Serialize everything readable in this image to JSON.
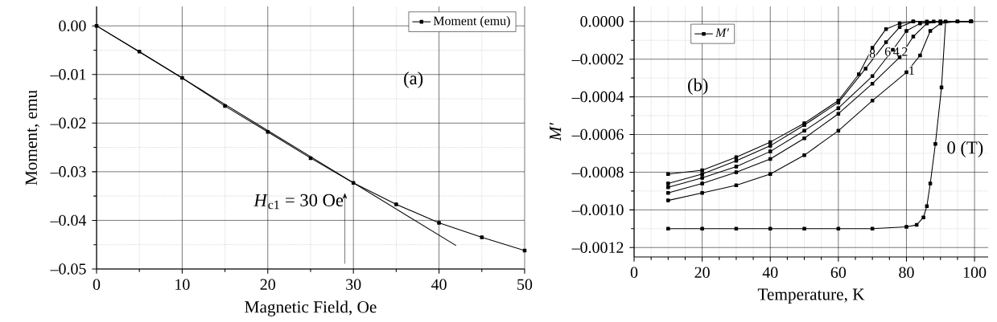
{
  "chart_data": [
    {
      "type": "line",
      "xlabel": "Magnetic Field, Oe",
      "ylabel": "Moment, emu",
      "x": [
        0,
        5,
        10,
        15,
        20,
        25,
        30,
        35,
        40,
        45,
        50
      ],
      "series": [
        {
          "name": "Moment (emu)",
          "color": "#000000",
          "values": [
            0,
            -0.0053,
            -0.0107,
            -0.0165,
            -0.0218,
            -0.0272,
            -0.0323,
            -0.0367,
            -0.0405,
            -0.0435,
            -0.0462
          ]
        },
        {
          "type": "line",
          "color": "#000000",
          "marker": "none",
          "x": [
            0,
            42
          ],
          "values": [
            0,
            -0.0452
          ]
        }
      ],
      "xlim": [
        0,
        50
      ],
      "ylim": [
        -0.05,
        0.004
      ],
      "xticks": [
        0,
        10,
        20,
        30,
        40,
        50
      ],
      "yticks": [
        {
          "value": 0,
          "label": "0.00"
        },
        {
          "value": -0.01,
          "label": "–0.01"
        },
        {
          "value": -0.02,
          "label": "–0.02"
        },
        {
          "value": -0.03,
          "label": "–0.03"
        },
        {
          "value": -0.04,
          "label": "–0.04"
        },
        {
          "value": -0.05,
          "label": "–0.05"
        }
      ],
      "grid": true,
      "legend": "top right",
      "marker": "square",
      "line_style": "solid",
      "annotations": [
        "(a)",
        "*H*$_{c1}$ = 30 Oe"
      ]
    },
    {
      "type": "line",
      "xlabel": "Temperature, K",
      "ylabel": "*M′*",
      "series": [
        {
          "name": "*M′*",
          "color": "#000000",
          "x": [
            10,
            20,
            30,
            40,
            50,
            60,
            66,
            70,
            74,
            78,
            82,
            90,
            99
          ],
          "values": [
            -0.00081,
            -0.00079,
            -0.00072,
            -0.00064,
            -0.00054,
            -0.00042,
            -0.00028,
            -0.00014,
            -4e-05,
            -1e-05,
            0,
            0,
            0
          ]
        },
        {
          "color": "#000000",
          "x": [
            10,
            20,
            30,
            40,
            50,
            60,
            68,
            74,
            78,
            82,
            86,
            99
          ],
          "values": [
            -0.00086,
            -0.00081,
            -0.00074,
            -0.00066,
            -0.00055,
            -0.00043,
            -0.00025,
            -0.00011,
            -3e-05,
            0,
            0,
            0
          ]
        },
        {
          "color": "#000000",
          "x": [
            10,
            20,
            30,
            40,
            50,
            60,
            70,
            76,
            80,
            84,
            88,
            99
          ],
          "values": [
            -0.00088,
            -0.00083,
            -0.00077,
            -0.00069,
            -0.00058,
            -0.00046,
            -0.00029,
            -0.00015,
            -5e-05,
            -1e-05,
            0,
            0
          ]
        },
        {
          "color": "#000000",
          "x": [
            10,
            20,
            30,
            40,
            50,
            60,
            70,
            78,
            82,
            86,
            90,
            99
          ],
          "values": [
            -0.00091,
            -0.00086,
            -0.0008,
            -0.00073,
            -0.00062,
            -0.00049,
            -0.00033,
            -0.00019,
            -8e-05,
            -1e-05,
            0,
            0
          ]
        },
        {
          "color": "#000000",
          "x": [
            10,
            20,
            30,
            40,
            50,
            60,
            70,
            80,
            84,
            87,
            90,
            95,
            99
          ],
          "values": [
            -0.00095,
            -0.00091,
            -0.00087,
            -0.00081,
            -0.00071,
            -0.00058,
            -0.00042,
            -0.00027,
            -0.00018,
            -5e-05,
            -1e-05,
            0,
            0
          ]
        },
        {
          "color": "#000000",
          "x": [
            10,
            20,
            30,
            40,
            50,
            60,
            70,
            80,
            83,
            85,
            86,
            87,
            88.5,
            90.3,
            91.5,
            95,
            99
          ],
          "values": [
            -0.0011,
            -0.0011,
            -0.0011,
            -0.0011,
            -0.0011,
            -0.0011,
            -0.0011,
            -0.00109,
            -0.00108,
            -0.00104,
            -0.00098,
            -0.00086,
            -0.00065,
            -0.00035,
            0,
            0,
            0
          ]
        }
      ],
      "xlim": [
        0,
        104
      ],
      "ylim": [
        -0.00125,
        8e-05
      ],
      "xticks": [
        0,
        20,
        40,
        60,
        80,
        100
      ],
      "yticks": [
        {
          "value": 0,
          "label": "0.0000"
        },
        {
          "value": -0.0002,
          "label": "–0.0002"
        },
        {
          "value": -0.0004,
          "label": "–0.0004"
        },
        {
          "value": -0.0006,
          "label": "–0.0006"
        },
        {
          "value": -0.0008,
          "label": "–0.0008"
        },
        {
          "value": -0.001,
          "label": "–0.0010"
        },
        {
          "value": -0.0012,
          "label": "–0.0012"
        }
      ],
      "grid": true,
      "legend": "top left",
      "marker": "square",
      "line_style": "solid",
      "annotations": [
        "(b)",
        {
          "text": "8",
          "x": 70,
          "y": -0.00017
        },
        {
          "text": "6",
          "x": 74.5,
          "y": -0.00016
        },
        {
          "text": "4",
          "x": 77,
          "y": -0.00016
        },
        {
          "text": "2",
          "x": 79.5,
          "y": -0.00016
        },
        {
          "text": "1",
          "x": 81.5,
          "y": -0.00026
        },
        "0 (T)"
      ]
    }
  ]
}
